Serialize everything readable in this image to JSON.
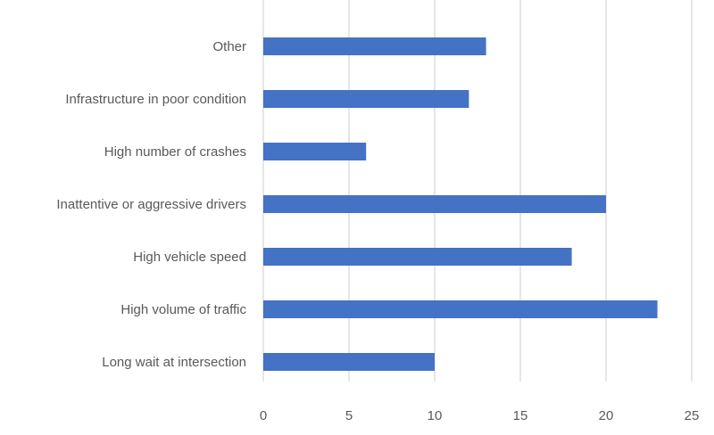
{
  "chart_data": {
    "type": "bar",
    "orientation": "horizontal",
    "title": "",
    "xlabel": "",
    "ylabel": "",
    "categories": [
      "Other",
      "Infrastructure in poor condition",
      "High number of crashes",
      "Inattentive or aggressive drivers",
      "High vehicle speed",
      "High volume of traffic",
      "Long wait at intersection"
    ],
    "values": [
      13,
      12,
      6,
      20,
      18,
      23,
      10
    ],
    "xlim": [
      0,
      25
    ],
    "xticks": [
      0,
      5,
      10,
      15,
      20,
      25
    ],
    "grid": "vertical",
    "legend": "none",
    "colors": {
      "bar": "#4472C4",
      "grid": "#D9D9D9",
      "text": "#595959"
    }
  }
}
